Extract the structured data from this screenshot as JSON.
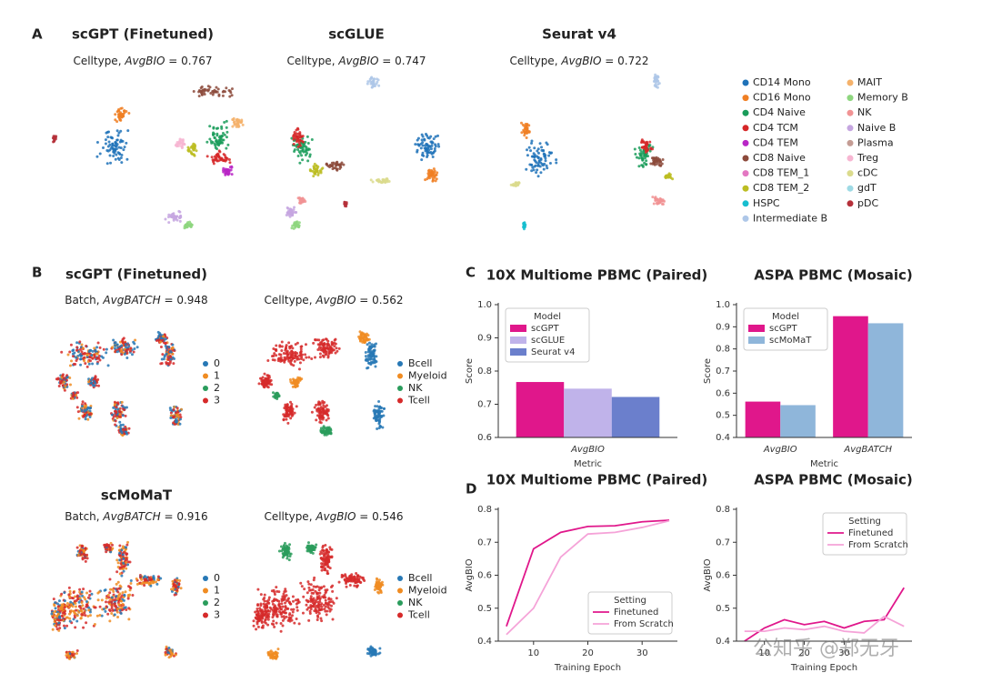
{
  "panel_labels": {
    "a": "A",
    "b": "B",
    "c": "C",
    "d": "D"
  },
  "panel_a": {
    "plots": [
      {
        "title": "scGPT (Finetuned)",
        "caption": [
          "Celltype, ",
          "AvgBIO",
          " = 0.767"
        ]
      },
      {
        "title": "scGLUE",
        "caption": [
          "Celltype, ",
          "AvgBIO",
          " = 0.747"
        ]
      },
      {
        "title": "Seurat v4",
        "caption": [
          "Celltype, ",
          "AvgBIO",
          " = 0.722"
        ]
      }
    ],
    "legend": [
      {
        "name": "CD14 Mono",
        "color": "#1f72b8"
      },
      {
        "name": "CD16 Mono",
        "color": "#f07f23"
      },
      {
        "name": "CD4 Naive",
        "color": "#1a9c5a"
      },
      {
        "name": "CD4 TCM",
        "color": "#d62728"
      },
      {
        "name": "CD4 TEM",
        "color": "#b826c6"
      },
      {
        "name": "CD8 Naive",
        "color": "#8c4a3b"
      },
      {
        "name": "CD8 TEM_1",
        "color": "#e377c2"
      },
      {
        "name": "CD8 TEM_2",
        "color": "#bcbd22"
      },
      {
        "name": "HSPC",
        "color": "#17becf"
      },
      {
        "name": "Intermediate B",
        "color": "#aec7e8"
      },
      {
        "name": "MAIT",
        "color": "#f5b26b"
      },
      {
        "name": "Memory B",
        "color": "#8ed67f"
      },
      {
        "name": "NK",
        "color": "#f19394"
      },
      {
        "name": "Naive B",
        "color": "#c5a6e0"
      },
      {
        "name": "Plasma",
        "color": "#c49c94"
      },
      {
        "name": "Treg",
        "color": "#f7b6d2"
      },
      {
        "name": "cDC",
        "color": "#dbdb8d"
      },
      {
        "name": "gdT",
        "color": "#9edae5"
      },
      {
        "name": "pDC",
        "color": "#b5303a"
      }
    ]
  },
  "panel_b": {
    "groups": [
      {
        "title": "scGPT (Finetuned)",
        "plots": [
          {
            "caption": [
              "Batch, ",
              "AvgBATCH",
              " = 0.948"
            ],
            "legend": [
              {
                "name": "0",
                "color": "#2778b5"
              },
              {
                "name": "1",
                "color": "#f08c22"
              },
              {
                "name": "2",
                "color": "#2a9c5c"
              },
              {
                "name": "3",
                "color": "#d62a2a"
              }
            ]
          },
          {
            "caption": [
              "Celltype, ",
              "AvgBIO",
              " = 0.562"
            ],
            "legend": [
              {
                "name": "Bcell",
                "color": "#2778b5"
              },
              {
                "name": "Myeloid",
                "color": "#f08c22"
              },
              {
                "name": "NK",
                "color": "#2a9c5c"
              },
              {
                "name": "Tcell",
                "color": "#d62a2a"
              }
            ]
          }
        ]
      },
      {
        "title": "scMoMaT",
        "plots": [
          {
            "caption": [
              "Batch, ",
              "AvgBATCH",
              " = 0.916"
            ],
            "legend": [
              {
                "name": "0",
                "color": "#2778b5"
              },
              {
                "name": "1",
                "color": "#f08c22"
              },
              {
                "name": "2",
                "color": "#2a9c5c"
              },
              {
                "name": "3",
                "color": "#d62a2a"
              }
            ]
          },
          {
            "caption": [
              "Celltype, ",
              "AvgBIO",
              " = 0.546"
            ],
            "legend": [
              {
                "name": "Bcell",
                "color": "#2778b5"
              },
              {
                "name": "Myeloid",
                "color": "#f08c22"
              },
              {
                "name": "NK",
                "color": "#2a9c5c"
              },
              {
                "name": "Tcell",
                "color": "#d62a2a"
              }
            ]
          }
        ]
      }
    ]
  },
  "chart_data": [
    {
      "type": "bar",
      "title": "10X Multiome PBMC (Paired)",
      "xlabel": "Metric",
      "ylabel": "Score",
      "categories": [
        "AvgBIO"
      ],
      "series": [
        {
          "name": "scGPT",
          "color": "#e0178b",
          "values": [
            0.767
          ]
        },
        {
          "name": "scGLUE",
          "color": "#c0b3ea",
          "values": [
            0.747
          ]
        },
        {
          "name": "Seurat v4",
          "color": "#6b7fcc",
          "values": [
            0.722
          ]
        }
      ],
      "ylim": [
        0.6,
        1.0
      ],
      "yticks": [
        0.6,
        0.7,
        0.8,
        0.9,
        {
          "value": 1,
          "label": "1.0"
        }
      ],
      "legend_title": "Model",
      "legend_loc": "upper left"
    },
    {
      "type": "bar",
      "title": "ASPA PBMC (Mosaic)",
      "xlabel": "Metric",
      "ylabel": "Score",
      "categories": [
        "AvgBIO",
        "AvgBATCH"
      ],
      "series": [
        {
          "name": "scGPT",
          "color": "#e0178b",
          "values": [
            0.562,
            0.948
          ]
        },
        {
          "name": "scMoMaT",
          "color": "#8fb6da",
          "values": [
            0.546,
            0.916
          ]
        }
      ],
      "ylim": [
        0.4,
        1.0
      ],
      "yticks": [
        0.4,
        0.5,
        0.6,
        0.7,
        0.8,
        0.9,
        {
          "value": 1,
          "label": "1.0"
        }
      ],
      "legend_title": "Model",
      "legend_loc": "upper left"
    },
    {
      "type": "line",
      "title": "10X Multiome PBMC (Paired)",
      "xlabel": "Training Epoch",
      "ylabel": "AvgBIO",
      "x": [
        5,
        10,
        15,
        20,
        25,
        30,
        35
      ],
      "series": [
        {
          "name": "Finetuned",
          "color": "#e0178b",
          "values": [
            0.445,
            0.68,
            0.73,
            0.748,
            0.75,
            0.762,
            0.767
          ]
        },
        {
          "name": "From Scratch",
          "color": "#f5a3d8",
          "values": [
            0.42,
            0.5,
            0.655,
            0.725,
            0.73,
            0.745,
            0.765
          ]
        }
      ],
      "xlim": [
        3.5,
        36.5
      ],
      "xticks": [
        10,
        20,
        30
      ],
      "ylim": [
        0.4,
        0.8
      ],
      "yticks": [
        0.4,
        0.5,
        0.6,
        0.7,
        0.8
      ],
      "legend_title": "Setting",
      "legend_loc": "lower right"
    },
    {
      "type": "line",
      "title": "ASPA PBMC (Mosaic)",
      "xlabel": "Training Epoch",
      "ylabel": "AvgBIO",
      "x": [
        5,
        10,
        15,
        20,
        25,
        30,
        35,
        40,
        45
      ],
      "series": [
        {
          "name": "Finetuned",
          "color": "#e0178b",
          "values": [
            0.4,
            0.44,
            0.465,
            0.45,
            0.46,
            0.44,
            0.46,
            0.465,
            0.562
          ]
        },
        {
          "name": "From Scratch",
          "color": "#f5a3d8",
          "values": [
            0.43,
            0.43,
            0.44,
            0.435,
            0.445,
            0.43,
            0.425,
            0.475,
            0.445
          ]
        }
      ],
      "xlim": [
        3,
        47
      ],
      "xticks": [
        10,
        20,
        30
      ],
      "ylim": [
        0.4,
        0.8
      ],
      "yticks": [
        0.4,
        0.5,
        0.6,
        0.7,
        0.8
      ],
      "legend_title": "Setting",
      "legend_loc": "upper right"
    }
  ],
  "watermark": "公知乎 @郑无牙"
}
